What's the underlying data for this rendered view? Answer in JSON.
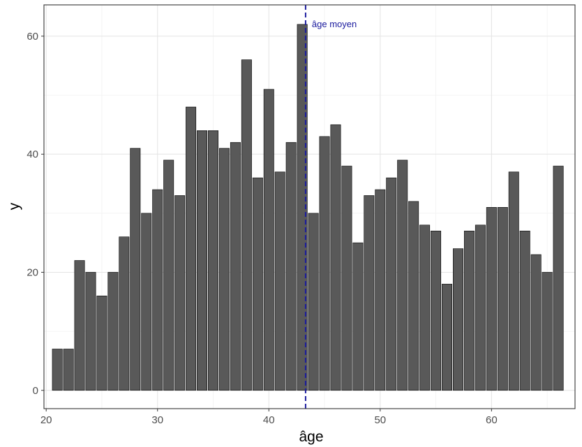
{
  "chart_data": {
    "type": "bar",
    "title": "",
    "xlabel": "âge",
    "ylabel": "y",
    "x": [
      21,
      22,
      23,
      24,
      25,
      26,
      27,
      28,
      29,
      30,
      31,
      32,
      33,
      34,
      35,
      36,
      37,
      38,
      39,
      40,
      41,
      42,
      43,
      44,
      45,
      46,
      47,
      48,
      49,
      50,
      51,
      52,
      53,
      54,
      55,
      56,
      57,
      58,
      59,
      60,
      61,
      62,
      63,
      64,
      65,
      66
    ],
    "values": [
      7,
      7,
      22,
      20,
      16,
      20,
      26,
      41,
      30,
      34,
      39,
      33,
      48,
      44,
      44,
      41,
      42,
      56,
      36,
      51,
      37,
      42,
      62,
      30,
      43,
      45,
      38,
      25,
      33,
      34,
      36,
      39,
      32,
      28,
      27,
      18,
      24,
      27,
      28,
      31,
      31,
      37,
      27,
      23,
      20,
      38
    ],
    "xlim": [
      19.8,
      67.5
    ],
    "ylim": [
      -3.1,
      65.3
    ],
    "x_ticks": [
      "20",
      "30",
      "40",
      "50",
      "60"
    ],
    "y_ticks": [
      "0",
      "20",
      "40",
      "60"
    ],
    "grid": true,
    "bar_color": "#595959",
    "bar_outline_color": "#000000",
    "reference_line": {
      "x": 43.3,
      "label": "âge moyen",
      "color": "#1b1b9e",
      "style": "dashed"
    }
  }
}
